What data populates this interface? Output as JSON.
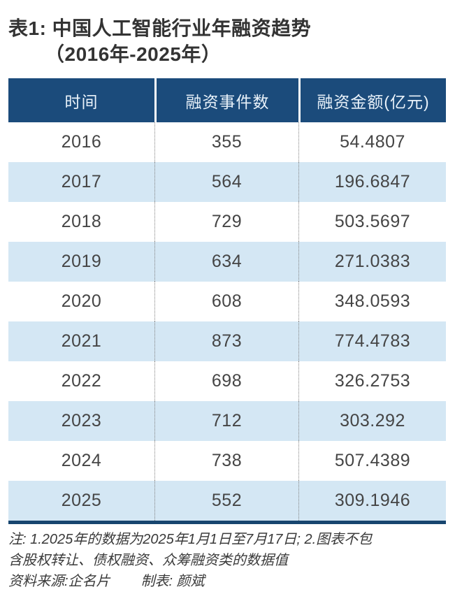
{
  "title": {
    "line1": "表1: 中国人工智能行业年融资趋势",
    "line2": "（2016年-2025年）"
  },
  "table": {
    "headers": [
      "时间",
      "融资事件数",
      "融资金额(亿元)"
    ],
    "rows": [
      {
        "year": "2016",
        "events": "355",
        "amount": "54.4807"
      },
      {
        "year": "2017",
        "events": "564",
        "amount": "196.6847"
      },
      {
        "year": "2018",
        "events": "729",
        "amount": "503.5697"
      },
      {
        "year": "2019",
        "events": "634",
        "amount": "271.0383"
      },
      {
        "year": "2020",
        "events": "608",
        "amount": "348.0593"
      },
      {
        "year": "2021",
        "events": "873",
        "amount": "774.4783"
      },
      {
        "year": "2022",
        "events": "698",
        "amount": "326.2753"
      },
      {
        "year": "2023",
        "events": "712",
        "amount": "303.292"
      },
      {
        "year": "2024",
        "events": "738",
        "amount": "507.4389"
      },
      {
        "year": "2025",
        "events": "552",
        "amount": "309.1946"
      }
    ]
  },
  "footer": {
    "note_line1": "注: 1.2025年的数据为2025年1月1日至7月17日; 2.图表不包",
    "note_line2": "含股权转让、债权融资、众筹融资类的数据值",
    "source": "资料来源:企名片",
    "credit": "制表: 颜斌"
  },
  "colors": {
    "header_bg": "#1b4b7b",
    "row_alt_bg": "#d4e7f4",
    "bottom_rule": "#17456f",
    "header_text": "#e9f2fa",
    "body_text": "#454545"
  },
  "chart_data": {
    "type": "table",
    "title": "表1: 中国人工智能行业年融资趋势（2016年-2025年）",
    "columns": [
      "时间",
      "融资事件数",
      "融资金额(亿元)"
    ],
    "rows": [
      [
        2016,
        355,
        54.4807
      ],
      [
        2017,
        564,
        196.6847
      ],
      [
        2018,
        729,
        503.5697
      ],
      [
        2019,
        634,
        271.0383
      ],
      [
        2020,
        608,
        348.0593
      ],
      [
        2021,
        873,
        774.4783
      ],
      [
        2022,
        698,
        326.2753
      ],
      [
        2023,
        712,
        303.292
      ],
      [
        2024,
        738,
        507.4389
      ],
      [
        2025,
        552,
        309.1946
      ]
    ],
    "notes": "注: 1.2025年的数据为2025年1月1日至7月17日; 2.图表不包含股权转让、债权融资、众筹融资类的数据值",
    "source": "资料来源:企名片",
    "credit": "制表: 颜斌"
  }
}
